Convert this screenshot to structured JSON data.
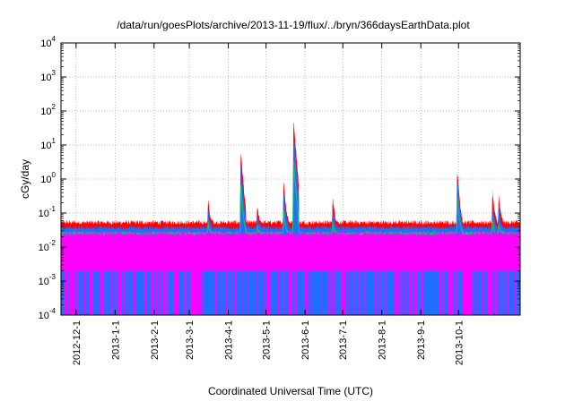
{
  "chart_data": {
    "type": "area",
    "title": "/data/run/goesPlots/archive/2013-11-19/flux/../bryn/366daysEarthData.plot",
    "xlabel": "Coordinated Universal Time (UTC)",
    "ylabel": "cGy/day",
    "y_scale": "log",
    "ylim": [
      0.0001,
      10000
    ],
    "xlim": [
      "2012-11-19",
      "2013-11-19"
    ],
    "grid": true,
    "legend": "none",
    "y_ticks": [
      {
        "base": "10",
        "exp": "-4",
        "value": 0.0001
      },
      {
        "base": "10",
        "exp": "-3",
        "value": 0.001
      },
      {
        "base": "10",
        "exp": "-2",
        "value": 0.01
      },
      {
        "base": "10",
        "exp": "-1",
        "value": 0.1
      },
      {
        "base": "10",
        "exp": "0",
        "value": 1
      },
      {
        "base": "10",
        "exp": "1",
        "value": 10
      },
      {
        "base": "10",
        "exp": "2",
        "value": 100
      },
      {
        "base": "10",
        "exp": "3",
        "value": 1000
      },
      {
        "base": "10",
        "exp": "4",
        "value": 10000
      }
    ],
    "x_ticks": [
      "2012-12-1",
      "2013-1-1",
      "2013-2-1",
      "2013-3-1",
      "2013-4-1",
      "2013-5-1",
      "2013-6-1",
      "2013-7-1",
      "2013-8-1",
      "2013-9-1",
      "2013-10-1"
    ],
    "colors": {
      "red": "#ff0000",
      "blue": "#1f6fff",
      "green": "#20c060",
      "magenta": "#ff00ff"
    },
    "baseline": {
      "red": 0.05,
      "blue": 0.035,
      "green": 0.025,
      "magenta_top": 0.02,
      "magenta_floor": 0.002
    },
    "peaks": [
      {
        "date": "2013-03-16",
        "red": 0.22,
        "blue": 0.12,
        "green": 0.05
      },
      {
        "date": "2013-04-11",
        "red": 6.0,
        "blue": 2.5,
        "green": 0.6
      },
      {
        "date": "2013-04-24",
        "red": 0.15,
        "blue": 0.09,
        "green": 0.04
      },
      {
        "date": "2013-05-15",
        "red": 0.8,
        "blue": 0.4,
        "green": 0.12
      },
      {
        "date": "2013-05-23",
        "red": 50,
        "blue": 20,
        "green": 3
      },
      {
        "date": "2013-06-23",
        "red": 0.28,
        "blue": 0.15,
        "green": 0.05
      },
      {
        "date": "2013-09-30",
        "red": 1.7,
        "blue": 1.0,
        "green": 0.3
      },
      {
        "date": "2013-10-28",
        "red": 0.4,
        "blue": 0.2,
        "green": 0.06
      },
      {
        "date": "2013-11-02",
        "red": 0.3,
        "blue": 0.15,
        "green": 0.05
      }
    ],
    "magenta_gaps": [
      {
        "start": "2013-03-03",
        "end": "2013-03-08"
      },
      {
        "start": "2013-10-04",
        "end": "2013-10-11"
      }
    ]
  }
}
